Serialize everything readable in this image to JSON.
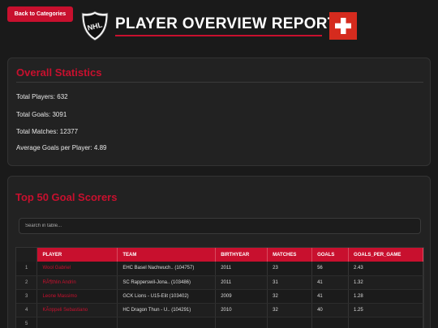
{
  "header": {
    "back_label": "Back to Categories",
    "title": "PLAYER OVERVIEW REPORT",
    "logo_text": "NHL",
    "accent": "#c8102e"
  },
  "stats": {
    "title": "Overall Statistics",
    "lines": [
      "Total Players: 632",
      "Total Goals: 3091",
      "Total Matches: 12377",
      "Average Goals per Player: 4.89"
    ]
  },
  "scorers": {
    "title": "Top 50 Goal Scorers",
    "search_placeholder": "Search in table...",
    "columns": [
      "PLAYER",
      "TEAM",
      "BIRTHYEAR",
      "MATCHES",
      "GOALS",
      "GOALS_PER_GAME"
    ],
    "rows": [
      [
        "1",
        "Wool Gabriel",
        "EHC Basel Nachwuch.. (104757)",
        "2011",
        "23",
        "56",
        "2.43"
      ],
      [
        "2",
        "RÃ¶thlin Andrin",
        "SC Rapperswil-Jona.. (103486)",
        "2011",
        "31",
        "41",
        "1.32"
      ],
      [
        "3",
        "Leone Massimo",
        "GCK Lions - U15-Elit (103402)",
        "2009",
        "32",
        "41",
        "1.28"
      ],
      [
        "4",
        "KÃ¤ppeli Sebastiano",
        "HC Dragon Thun - U.. (104291)",
        "2010",
        "32",
        "40",
        "1.25"
      ],
      [
        "5",
        "",
        "",
        "",
        "",
        "",
        ""
      ]
    ]
  }
}
